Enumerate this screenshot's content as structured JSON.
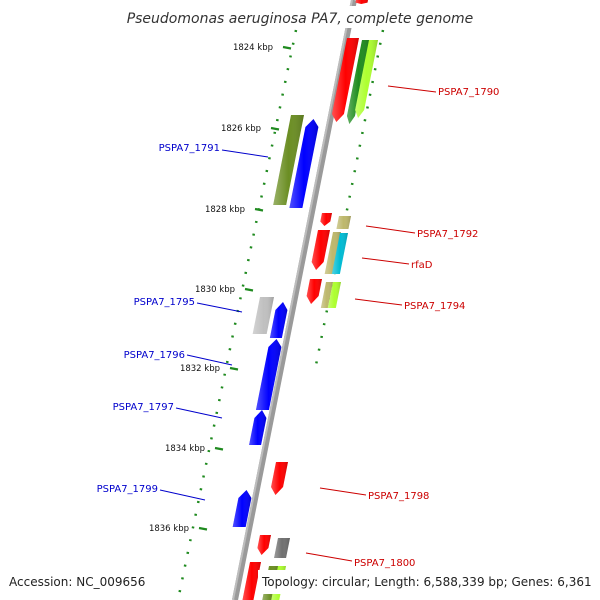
{
  "title": "Pseudomonas aeruginosa PA7, complete genome",
  "accession_text": "Accession: NC_009656",
  "topology_text": "Topology: circular; Length: 6,588,339 bp; Genes: 6,361",
  "colors": {
    "backbone": "#8a8a8a",
    "tick": "#1f8a1f",
    "plus_label": "#cc0000",
    "minus_label": "#0000cc",
    "red": "#ff0000",
    "blue": "#0000ff",
    "olive": "#6b8e23",
    "green": "#1e8c1e",
    "lime": "#adff2f",
    "khaki": "#bdb76b",
    "cyan": "#00bcd4",
    "silver": "#c0c0c0",
    "gray": "#707070",
    "pink": "#f4c2c2"
  },
  "ticks": [
    {
      "label": "1824 kbp",
      "pos": 1824
    },
    {
      "label": "1826 kbp",
      "pos": 1826
    },
    {
      "label": "1828 kbp",
      "pos": 1828
    },
    {
      "label": "1830 kbp",
      "pos": 1830
    },
    {
      "label": "1832 kbp",
      "pos": 1832
    },
    {
      "label": "1834 kbp",
      "pos": 1834
    },
    {
      "label": "1836 kbp",
      "pos": 1836
    }
  ],
  "genes": [
    {
      "label": "PSPA7_1790",
      "strand": "plus"
    },
    {
      "label": "PSPA7_1791",
      "strand": "minus"
    },
    {
      "label": "PSPA7_1792",
      "strand": "plus"
    },
    {
      "label": "rfaD",
      "strand": "plus"
    },
    {
      "label": "PSPA7_1794",
      "strand": "plus"
    },
    {
      "label": "PSPA7_1795",
      "strand": "minus"
    },
    {
      "label": "PSPA7_1796",
      "strand": "minus"
    },
    {
      "label": "PSPA7_1797",
      "strand": "minus"
    },
    {
      "label": "PSPA7_1798",
      "strand": "plus"
    },
    {
      "label": "PSPA7_1799",
      "strand": "minus"
    },
    {
      "label": "PSPA7_1800",
      "strand": "plus"
    }
  ]
}
